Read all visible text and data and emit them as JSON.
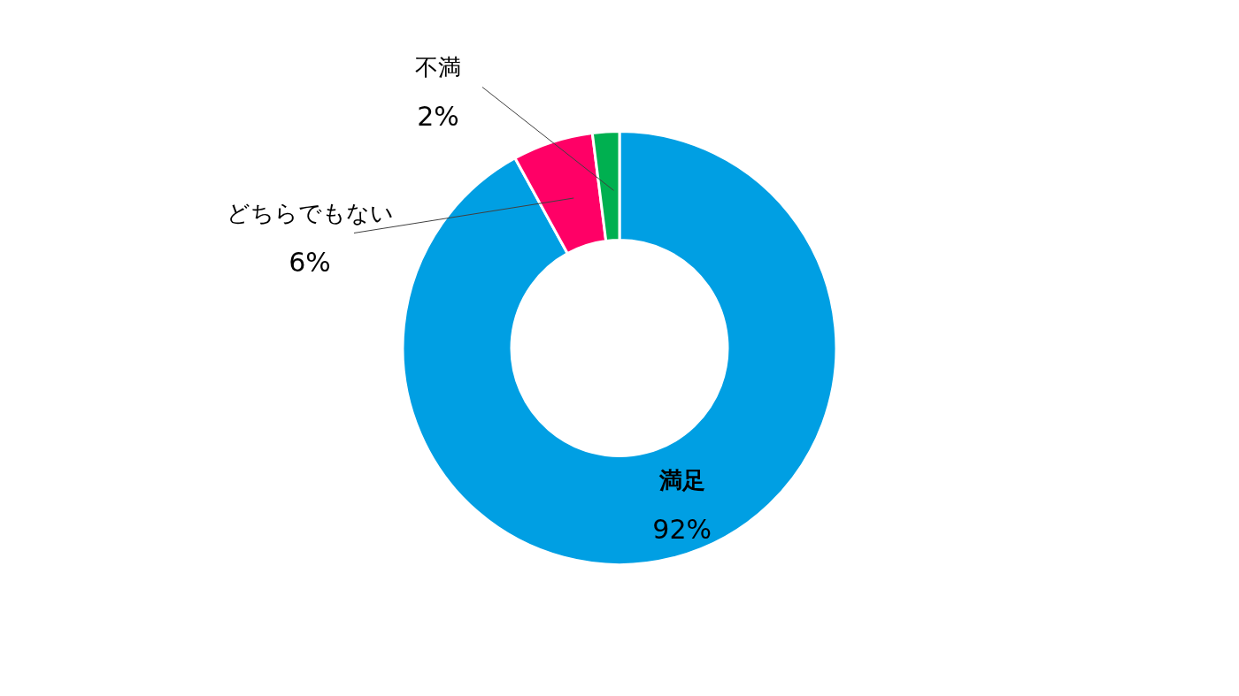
{
  "chart_data": {
    "type": "donut",
    "categories": [
      "満足",
      "どちらでもない",
      "不満"
    ],
    "values": [
      92,
      6,
      2
    ],
    "colors": [
      "#009fe3",
      "#ff0066",
      "#00b050"
    ],
    "value_labels": [
      "92%",
      "6%",
      "2%"
    ],
    "legend": false
  }
}
